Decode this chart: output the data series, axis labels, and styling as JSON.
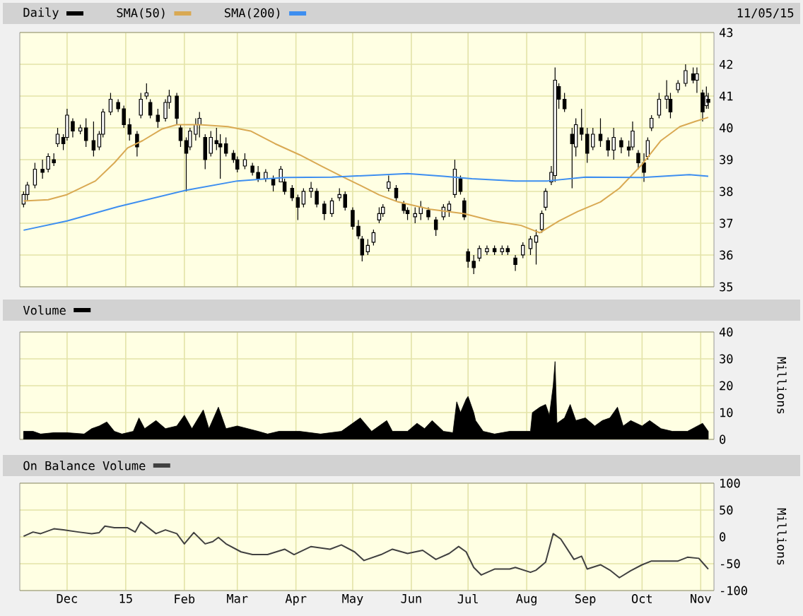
{
  "chart_data": [
    {
      "type": "candlestick",
      "legend": "top left",
      "grid": true,
      "tick_labels": "y",
      "annotations": [
        "11/05/15"
      ],
      "xlim": [
        "2014-11-06",
        "2015-11-08"
      ],
      "xticks": [
        {
          "value": "2014-12-01",
          "label": null
        },
        {
          "value": "2015-01-01",
          "label": null
        },
        {
          "value": "2015-02-01",
          "label": null
        },
        {
          "value": "2015-03-01",
          "label": null
        },
        {
          "value": "2015-04-01",
          "label": null
        },
        {
          "value": "2015-05-01",
          "label": null
        },
        {
          "value": "2015-06-01",
          "label": null
        },
        {
          "value": "2015-07-01",
          "label": null
        },
        {
          "value": "2015-08-01",
          "label": null
        },
        {
          "value": "2015-09-01",
          "label": null
        },
        {
          "value": "2015-10-01",
          "label": null
        },
        {
          "value": "2015-11-01",
          "label": null
        }
      ],
      "ylim": [
        35,
        43
      ],
      "yticks": [
        35,
        36,
        37,
        38,
        39,
        40,
        41,
        42,
        43
      ],
      "series": [
        {
          "name": "Daily",
          "type": "candlestick",
          "color": "#000000",
          "x": [
            "2014-11-08",
            "2014-11-10",
            "2014-11-14",
            "2014-11-18",
            "2014-11-21",
            "2014-11-24",
            "2014-11-26",
            "2014-11-29",
            "2014-12-01",
            "2014-12-04",
            "2014-12-08",
            "2014-12-11",
            "2014-12-15",
            "2014-12-18",
            "2014-12-20",
            "2014-12-24",
            "2014-12-28",
            "2014-12-31",
            "2015-01-03",
            "2015-01-07",
            "2015-01-09",
            "2015-01-12",
            "2015-01-14",
            "2015-01-18",
            "2015-01-22",
            "2015-01-24",
            "2015-01-28",
            "2015-01-30",
            "2015-02-02",
            "2015-02-04",
            "2015-02-07",
            "2015-02-09",
            "2015-02-12",
            "2015-02-15",
            "2015-02-18",
            "2015-02-20",
            "2015-02-23",
            "2015-02-27",
            "2015-03-01",
            "2015-03-05",
            "2015-03-09",
            "2015-03-12",
            "2015-03-16",
            "2015-03-20",
            "2015-03-24",
            "2015-03-26",
            "2015-03-30",
            "2015-04-02",
            "2015-04-05",
            "2015-04-09",
            "2015-04-12",
            "2015-04-16",
            "2015-04-20",
            "2015-04-24",
            "2015-04-27",
            "2015-05-01",
            "2015-05-04",
            "2015-05-06",
            "2015-05-09",
            "2015-05-12",
            "2015-05-15",
            "2015-05-17",
            "2015-05-20",
            "2015-05-24",
            "2015-05-28",
            "2015-05-30",
            "2015-06-03",
            "2015-06-06",
            "2015-06-10",
            "2015-06-14",
            "2015-06-18",
            "2015-06-21",
            "2015-06-24",
            "2015-06-27",
            "2015-06-29",
            "2015-07-01",
            "2015-07-04",
            "2015-07-07",
            "2015-07-11",
            "2015-07-15",
            "2015-07-19",
            "2015-07-22",
            "2015-07-26",
            "2015-07-30",
            "2015-08-03",
            "2015-08-06",
            "2015-08-09",
            "2015-08-11",
            "2015-08-14",
            "2015-08-16",
            "2015-08-18",
            "2015-08-21",
            "2015-08-25",
            "2015-08-27",
            "2015-08-30",
            "2015-09-02",
            "2015-09-05",
            "2015-09-09",
            "2015-09-13",
            "2015-09-16",
            "2015-09-20",
            "2015-09-24",
            "2015-09-26",
            "2015-09-29",
            "2015-10-02",
            "2015-10-04",
            "2015-10-06",
            "2015-10-10",
            "2015-10-14",
            "2015-10-16",
            "2015-10-20",
            "2015-10-24",
            "2015-10-28",
            "2015-10-30",
            "2015-11-02",
            "2015-11-04",
            "2015-11-05"
          ],
          "ohlc": [
            [
              37.6,
              38.0,
              37.5,
              37.9
            ],
            [
              37.9,
              38.3,
              37.7,
              38.2
            ],
            [
              38.2,
              38.9,
              38.1,
              38.7
            ],
            [
              38.7,
              39.0,
              38.4,
              38.6
            ],
            [
              38.7,
              39.2,
              38.6,
              39.1
            ],
            [
              39.0,
              39.2,
              38.8,
              38.9
            ],
            [
              39.5,
              40.0,
              39.4,
              39.8
            ],
            [
              39.7,
              39.8,
              39.3,
              39.5
            ],
            [
              39.7,
              40.6,
              39.6,
              40.4
            ],
            [
              40.2,
              40.3,
              39.7,
              39.9
            ],
            [
              39.9,
              40.1,
              39.8,
              40.0
            ],
            [
              40.0,
              40.3,
              39.4,
              39.6
            ],
            [
              39.6,
              40.2,
              39.1,
              39.3
            ],
            [
              39.4,
              39.9,
              39.3,
              39.8
            ],
            [
              39.8,
              40.6,
              39.7,
              40.5
            ],
            [
              40.5,
              41.1,
              40.4,
              40.9
            ],
            [
              40.8,
              40.9,
              40.5,
              40.6
            ],
            [
              40.6,
              40.7,
              40.0,
              40.1
            ],
            [
              40.1,
              40.3,
              39.6,
              39.8
            ],
            [
              39.8,
              39.9,
              39.1,
              39.4
            ],
            [
              40.4,
              41.1,
              40.3,
              40.9
            ],
            [
              41.0,
              41.4,
              40.9,
              41.1
            ],
            [
              40.8,
              40.9,
              40.3,
              40.4
            ],
            [
              40.4,
              40.6,
              40.0,
              40.2
            ],
            [
              40.3,
              40.9,
              40.2,
              40.8
            ],
            [
              40.8,
              41.2,
              40.6,
              41.0
            ],
            [
              41.0,
              41.1,
              40.1,
              40.3
            ],
            [
              40.0,
              40.1,
              39.4,
              39.6
            ],
            [
              39.6,
              39.7,
              38.0,
              39.2
            ],
            [
              39.4,
              40.0,
              39.3,
              39.9
            ],
            [
              39.8,
              40.3,
              39.6,
              40.1
            ],
            [
              40.1,
              40.5,
              39.7,
              40.3
            ],
            [
              39.7,
              39.8,
              38.7,
              39.0
            ],
            [
              39.2,
              39.9,
              39.1,
              39.7
            ],
            [
              39.6,
              40.0,
              39.3,
              39.5
            ],
            [
              39.5,
              39.8,
              38.4,
              39.4
            ],
            [
              39.5,
              39.7,
              39.1,
              39.2
            ],
            [
              39.2,
              39.3,
              38.9,
              39.0
            ],
            [
              39.0,
              39.1,
              38.6,
              38.7
            ],
            [
              38.8,
              39.2,
              38.7,
              39.0
            ],
            [
              38.8,
              38.9,
              38.5,
              38.6
            ],
            [
              38.6,
              38.8,
              38.3,
              38.4
            ],
            [
              38.4,
              38.7,
              38.3,
              38.6
            ],
            [
              38.4,
              38.5,
              38.0,
              38.2
            ],
            [
              38.3,
              38.8,
              38.3,
              38.7
            ],
            [
              38.3,
              38.4,
              37.9,
              38.0
            ],
            [
              38.1,
              38.2,
              37.7,
              37.8
            ],
            [
              37.8,
              37.9,
              37.1,
              37.5
            ],
            [
              37.6,
              38.1,
              37.5,
              38.0
            ],
            [
              38.0,
              38.3,
              37.8,
              38.1
            ],
            [
              38.0,
              38.1,
              37.5,
              37.6
            ],
            [
              37.6,
              37.7,
              37.1,
              37.3
            ],
            [
              37.3,
              37.8,
              37.2,
              37.7
            ],
            [
              37.8,
              38.1,
              37.7,
              37.9
            ],
            [
              37.9,
              38.0,
              37.4,
              37.5
            ],
            [
              37.4,
              37.5,
              36.8,
              36.9
            ],
            [
              36.9,
              37.1,
              36.5,
              36.6
            ],
            [
              36.5,
              36.6,
              35.8,
              36.0
            ],
            [
              36.1,
              36.5,
              36.0,
              36.3
            ],
            [
              36.4,
              36.8,
              36.3,
              36.7
            ],
            [
              37.1,
              37.5,
              37.0,
              37.3
            ],
            [
              37.3,
              37.6,
              37.2,
              37.5
            ],
            [
              38.1,
              38.5,
              38.0,
              38.3
            ],
            [
              38.1,
              38.2,
              37.7,
              37.8
            ],
            [
              37.6,
              37.7,
              37.3,
              37.4
            ],
            [
              37.4,
              37.5,
              37.1,
              37.3
            ],
            [
              37.2,
              37.5,
              37.0,
              37.3
            ],
            [
              37.3,
              37.7,
              37.1,
              37.5
            ],
            [
              37.4,
              37.5,
              37.1,
              37.2
            ],
            [
              37.1,
              37.2,
              36.6,
              36.8
            ],
            [
              37.2,
              37.6,
              37.1,
              37.5
            ],
            [
              37.4,
              37.7,
              37.2,
              37.6
            ],
            [
              37.9,
              39.0,
              37.8,
              38.7
            ],
            [
              38.4,
              38.5,
              37.9,
              38.0
            ],
            [
              37.7,
              37.8,
              37.1,
              37.2
            ],
            [
              36.1,
              36.2,
              35.6,
              35.8
            ],
            [
              35.8,
              36.0,
              35.4,
              35.6
            ],
            [
              35.9,
              36.3,
              35.8,
              36.2
            ],
            [
              36.1,
              36.3,
              36.0,
              36.2
            ],
            [
              36.2,
              36.3,
              36.0,
              36.1
            ],
            [
              36.1,
              36.3,
              36.0,
              36.2
            ],
            [
              36.2,
              36.3,
              36.0,
              36.1
            ],
            [
              35.9,
              36.0,
              35.5,
              35.7
            ],
            [
              36.0,
              36.4,
              35.9,
              36.3
            ],
            [
              36.2,
              36.6,
              36.0,
              36.5
            ],
            [
              36.4,
              36.8,
              35.7,
              36.6
            ],
            [
              36.8,
              37.4,
              36.7,
              37.3
            ],
            [
              37.5,
              38.1,
              37.4,
              38.0
            ],
            [
              38.3,
              38.8,
              38.2,
              38.6
            ],
            [
              38.5,
              41.9,
              38.3,
              41.5
            ],
            [
              41.3,
              41.4,
              40.6,
              40.9
            ],
            [
              40.9,
              41.1,
              40.5,
              40.6
            ],
            [
              39.8,
              40.0,
              38.1,
              39.5
            ],
            [
              39.4,
              40.3,
              39.1,
              40.1
            ],
            [
              40.0,
              40.6,
              39.6,
              39.8
            ],
            [
              39.8,
              40.0,
              38.9,
              39.2
            ],
            [
              39.4,
              40.0,
              39.3,
              39.8
            ],
            [
              39.8,
              40.3,
              39.4,
              39.6
            ],
            [
              39.6,
              39.7,
              39.1,
              39.3
            ],
            [
              39.3,
              40.0,
              39.0,
              39.7
            ],
            [
              39.6,
              39.7,
              39.2,
              39.4
            ],
            [
              39.4,
              39.6,
              39.1,
              39.3
            ],
            [
              39.4,
              40.2,
              39.3,
              39.9
            ],
            [
              39.2,
              39.3,
              38.7,
              38.9
            ],
            [
              38.9,
              39.2,
              38.3,
              38.6
            ],
            [
              39.1,
              39.7,
              39.0,
              39.6
            ],
            [
              40.0,
              40.4,
              39.9,
              40.3
            ],
            [
              40.4,
              41.1,
              40.3,
              40.9
            ],
            [
              40.9,
              41.5,
              40.6,
              41.0
            ],
            [
              40.9,
              41.1,
              40.3,
              40.5
            ],
            [
              41.2,
              41.5,
              41.1,
              41.4
            ],
            [
              41.4,
              42.0,
              41.3,
              41.8
            ],
            [
              41.7,
              41.9,
              41.4,
              41.5
            ],
            [
              41.5,
              41.9,
              41.1,
              41.7
            ],
            [
              41.1,
              41.2,
              40.2,
              40.5
            ],
            [
              40.7,
              41.3,
              40.6,
              41.0
            ],
            [
              40.9,
              41.1,
              40.6,
              40.8
            ]
          ]
        },
        {
          "name": "SMA(50)",
          "type": "line",
          "color": "#d9a953",
          "x": [
            "2014-11-08",
            "2014-11-21",
            "2014-12-01",
            "2014-12-16",
            "2014-12-26",
            "2015-01-02",
            "2015-01-10",
            "2015-01-20",
            "2015-01-28",
            "2015-02-09",
            "2015-02-24",
            "2015-03-08",
            "2015-03-21",
            "2015-04-03",
            "2015-04-15",
            "2015-04-25",
            "2015-05-05",
            "2015-05-15",
            "2015-05-25",
            "2015-06-11",
            "2015-06-29",
            "2015-07-14",
            "2015-07-29",
            "2015-08-08",
            "2015-08-18",
            "2015-08-28",
            "2015-09-09",
            "2015-09-19",
            "2015-10-01",
            "2015-10-11",
            "2015-10-21",
            "2015-10-29",
            "2015-11-05"
          ],
          "values": [
            37.7,
            37.74,
            37.9,
            38.33,
            38.9,
            39.37,
            39.6,
            39.96,
            40.1,
            40.1,
            40.04,
            39.9,
            39.5,
            39.15,
            38.78,
            38.48,
            38.19,
            37.89,
            37.67,
            37.44,
            37.3,
            37.07,
            36.93,
            36.7,
            37.07,
            37.37,
            37.67,
            38.1,
            38.85,
            39.6,
            40.04,
            40.2,
            40.33
          ]
        },
        {
          "name": "SMA(200)",
          "type": "line",
          "color": "#3d8ef0",
          "x": [
            "2014-11-08",
            "2014-12-01",
            "2014-12-28",
            "2015-02-02",
            "2015-03-01",
            "2015-03-26",
            "2015-04-20",
            "2015-05-30",
            "2015-06-18",
            "2015-07-03",
            "2015-07-26",
            "2015-08-12",
            "2015-09-01",
            "2015-10-01",
            "2015-10-26",
            "2015-11-05"
          ],
          "values": [
            36.78,
            37.07,
            37.52,
            38.04,
            38.33,
            38.44,
            38.45,
            38.56,
            38.48,
            38.4,
            38.33,
            38.33,
            38.45,
            38.44,
            38.53,
            38.48
          ]
        }
      ]
    },
    {
      "type": "area",
      "legend": "top left",
      "grid": true,
      "tick_labels": "y",
      "ylabel": "Millions",
      "xlim": [
        "2014-11-06",
        "2015-11-08"
      ],
      "xticks": [
        {
          "value": "2014-12-01",
          "label": null
        },
        {
          "value": "2015-01-01",
          "label": null
        },
        {
          "value": "2015-02-01",
          "label": null
        },
        {
          "value": "2015-03-01",
          "label": null
        },
        {
          "value": "2015-04-01",
          "label": null
        },
        {
          "value": "2015-05-01",
          "label": null
        },
        {
          "value": "2015-06-01",
          "label": null
        },
        {
          "value": "2015-07-01",
          "label": null
        },
        {
          "value": "2015-08-01",
          "label": null
        },
        {
          "value": "2015-09-01",
          "label": null
        },
        {
          "value": "2015-10-01",
          "label": null
        },
        {
          "value": "2015-11-01",
          "label": null
        }
      ],
      "ylim": [
        0,
        40
      ],
      "yticks": [
        0,
        10,
        20,
        30,
        40
      ],
      "series": [
        {
          "name": "Volume",
          "color": "#000000",
          "x": [
            "2014-11-08",
            "2014-11-13",
            "2014-11-17",
            "2014-11-24",
            "2014-12-01",
            "2014-12-10",
            "2014-12-14",
            "2014-12-18",
            "2014-12-22",
            "2014-12-26",
            "2014-12-30",
            "2015-01-05",
            "2015-01-08",
            "2015-01-11",
            "2015-01-17",
            "2015-01-22",
            "2015-01-28",
            "2015-02-01",
            "2015-02-05",
            "2015-02-11",
            "2015-02-14",
            "2015-02-19",
            "2015-02-23",
            "2015-03-01",
            "2015-03-12",
            "2015-03-17",
            "2015-03-23",
            "2015-04-03",
            "2015-04-14",
            "2015-04-25",
            "2015-05-05",
            "2015-05-11",
            "2015-05-19",
            "2015-05-22",
            "2015-05-30",
            "2015-06-04",
            "2015-06-08",
            "2015-06-12",
            "2015-06-18",
            "2015-06-23",
            "2015-06-25",
            "2015-06-27",
            "2015-06-30",
            "2015-07-01",
            "2015-07-04",
            "2015-07-05",
            "2015-07-09",
            "2015-07-15",
            "2015-07-23",
            "2015-08-03",
            "2015-08-04",
            "2015-08-08",
            "2015-08-11",
            "2015-08-13",
            "2015-08-15",
            "2015-08-16",
            "2015-08-17",
            "2015-08-21",
            "2015-08-24",
            "2015-08-27",
            "2015-09-01",
            "2015-09-06",
            "2015-09-10",
            "2015-09-14",
            "2015-09-18",
            "2015-09-21",
            "2015-09-25",
            "2015-10-01",
            "2015-10-05",
            "2015-10-11",
            "2015-10-17",
            "2015-10-25",
            "2015-11-02",
            "2015-11-05"
          ],
          "values": [
            3,
            3,
            2,
            2.5,
            2.5,
            2,
            4,
            5,
            6.5,
            3,
            2,
            3,
            8,
            4,
            7,
            4,
            5,
            9,
            4,
            11,
            4,
            12,
            4,
            5,
            3,
            2,
            3,
            3,
            2,
            3,
            8,
            3,
            7,
            3,
            3,
            6,
            4,
            7,
            3,
            2.5,
            14,
            10,
            15,
            16,
            10,
            7,
            3,
            2,
            3,
            3,
            10,
            12,
            13,
            9,
            20,
            29,
            6,
            8,
            13,
            7,
            8,
            5,
            7,
            8,
            12,
            5,
            7,
            5,
            7,
            4,
            3,
            3,
            6,
            3
          ]
        }
      ]
    },
    {
      "type": "line",
      "legend": "top left",
      "grid": true,
      "ylabel": "Millions",
      "xlim": [
        "2014-11-06",
        "2015-11-08"
      ],
      "xticks": [
        {
          "value": "2014-12-01",
          "label": "Dec"
        },
        {
          "value": "2015-01-01",
          "label": "15"
        },
        {
          "value": "2015-02-01",
          "label": "Feb"
        },
        {
          "value": "2015-03-01",
          "label": "Mar"
        },
        {
          "value": "2015-04-01",
          "label": "Apr"
        },
        {
          "value": "2015-05-01",
          "label": "May"
        },
        {
          "value": "2015-06-01",
          "label": "Jun"
        },
        {
          "value": "2015-07-01",
          "label": "Jul"
        },
        {
          "value": "2015-08-01",
          "label": "Aug"
        },
        {
          "value": "2015-09-01",
          "label": "Sep"
        },
        {
          "value": "2015-10-01",
          "label": "Oct"
        },
        {
          "value": "2015-11-01",
          "label": "Nov"
        }
      ],
      "ylim": [
        -100,
        100
      ],
      "yticks": [
        -100,
        -50,
        0,
        50,
        100
      ],
      "series": [
        {
          "name": "On Balance Volume",
          "color": "#404040",
          "x": [
            "2014-11-08",
            "2014-11-13",
            "2014-11-17",
            "2014-11-24",
            "2014-11-29",
            "2014-12-07",
            "2014-12-14",
            "2014-12-18",
            "2014-12-21",
            "2014-12-26",
            "2015-01-02",
            "2015-01-06",
            "2015-01-09",
            "2015-01-17",
            "2015-01-22",
            "2015-01-28",
            "2015-02-01",
            "2015-02-06",
            "2015-02-12",
            "2015-02-16",
            "2015-02-19",
            "2015-02-23",
            "2015-03-03",
            "2015-03-09",
            "2015-03-17",
            "2015-03-26",
            "2015-03-31",
            "2015-04-09",
            "2015-04-19",
            "2015-04-25",
            "2015-05-02",
            "2015-05-07",
            "2015-05-16",
            "2015-05-22",
            "2015-05-30",
            "2015-06-07",
            "2015-06-14",
            "2015-06-21",
            "2015-06-26",
            "2015-06-30",
            "2015-07-04",
            "2015-07-08",
            "2015-07-15",
            "2015-07-23",
            "2015-07-26",
            "2015-08-03",
            "2015-08-06",
            "2015-08-11",
            "2015-08-15",
            "2015-08-19",
            "2015-08-26",
            "2015-08-30",
            "2015-09-02",
            "2015-09-09",
            "2015-09-14",
            "2015-09-19",
            "2015-09-25",
            "2015-10-01",
            "2015-10-06",
            "2015-10-11",
            "2015-10-20",
            "2015-10-25",
            "2015-10-31",
            "2015-11-03",
            "2015-11-05"
          ],
          "values": [
            1,
            9,
            6,
            15,
            13,
            9,
            6,
            8,
            20,
            17,
            17,
            9,
            28,
            6,
            13,
            6,
            -13,
            8,
            -13,
            -9,
            -1,
            -13,
            -28,
            -33,
            -33,
            -23,
            -33,
            -18,
            -23,
            -15,
            -28,
            -44,
            -33,
            -23,
            -31,
            -25,
            -42,
            -31,
            -18,
            -28,
            -57,
            -71,
            -60,
            -60,
            -57,
            -66,
            -62,
            -47,
            6,
            -4,
            -42,
            -36,
            -60,
            -52,
            -62,
            -76,
            -63,
            -52,
            -45,
            -45,
            -45,
            -38,
            -40,
            -52,
            -60
          ]
        }
      ]
    }
  ]
}
